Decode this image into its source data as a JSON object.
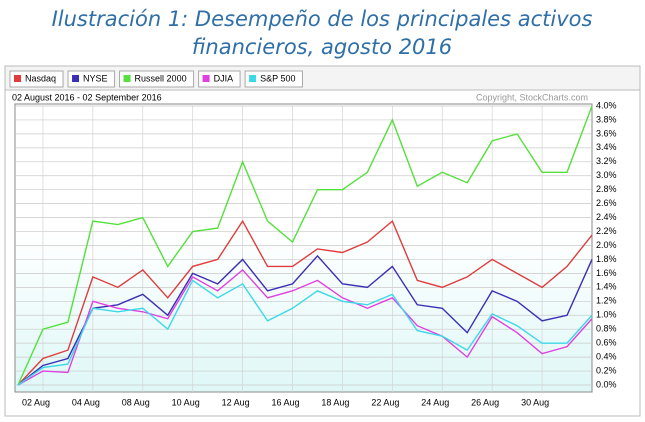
{
  "title": "Ilustración 1: Desempeño de los principales activos financieros, agosto 2016",
  "title_lines": [
    "Ilustración 1: Desempeño de los principales activos",
    "financieros, agosto 2016"
  ],
  "chart_data": {
    "type": "line",
    "subtitle": "02 August 2016 - 02 September 2016",
    "copyright": "Copyright, StockCharts.com",
    "categories": [
      null,
      "02 Aug",
      null,
      "04 Aug",
      null,
      "08 Aug",
      null,
      "10 Aug",
      null,
      "12 Aug",
      null,
      "16 Aug",
      null,
      "18 Aug",
      null,
      "22 Aug",
      null,
      "24 Aug",
      null,
      "26 Aug",
      null,
      "30 Aug",
      null,
      null
    ],
    "series": [
      {
        "name": "Nasdaq",
        "color": "#e03c3c",
        "values": [
          0,
          0.38,
          0.5,
          1.55,
          1.4,
          1.65,
          1.25,
          1.7,
          1.8,
          2.35,
          1.7,
          1.7,
          1.95,
          1.9,
          2.05,
          2.35,
          1.5,
          1.4,
          1.55,
          1.8,
          1.6,
          1.4,
          1.7,
          2.15
        ]
      },
      {
        "name": "NYSE",
        "color": "#3a2fb5",
        "values": [
          0,
          0.28,
          0.38,
          1.1,
          1.15,
          1.3,
          1.0,
          1.6,
          1.45,
          1.8,
          1.35,
          1.45,
          1.85,
          1.45,
          1.4,
          1.7,
          1.15,
          1.1,
          0.75,
          1.35,
          1.2,
          0.92,
          1.0,
          1.8
        ]
      },
      {
        "name": "Russell 2000",
        "color": "#55e03c",
        "values": [
          0,
          0.8,
          0.9,
          2.35,
          2.3,
          2.4,
          1.7,
          2.2,
          2.25,
          3.2,
          2.35,
          2.05,
          2.8,
          2.8,
          3.05,
          3.8,
          2.85,
          3.05,
          2.9,
          3.5,
          3.6,
          3.05,
          3.05,
          4.0
        ]
      },
      {
        "name": "DJIA",
        "color": "#e040e0",
        "values": [
          0,
          0.2,
          0.18,
          1.2,
          1.1,
          1.05,
          0.95,
          1.55,
          1.35,
          1.65,
          1.25,
          1.35,
          1.5,
          1.25,
          1.1,
          1.25,
          0.85,
          0.7,
          0.4,
          0.98,
          0.75,
          0.45,
          0.55,
          0.95
        ]
      },
      {
        "name": "S&P 500",
        "color": "#3cd8e8",
        "values": [
          0,
          0.25,
          0.3,
          1.1,
          1.05,
          1.1,
          0.8,
          1.5,
          1.25,
          1.45,
          0.92,
          1.1,
          1.35,
          1.2,
          1.15,
          1.3,
          0.78,
          0.7,
          0.5,
          1.02,
          0.85,
          0.6,
          0.6,
          1.0
        ]
      }
    ],
    "ylim": [
      0,
      4
    ],
    "yticks": [
      {
        "value": 0,
        "label": "0.0%"
      },
      {
        "value": 0.2,
        "label": "0.2%"
      },
      {
        "value": 0.4,
        "label": "0.4%"
      },
      {
        "value": 0.6,
        "label": "0.6%"
      },
      {
        "value": 0.8,
        "label": "0.8%"
      },
      {
        "value": 1,
        "label": "1.0%"
      },
      {
        "value": 1.2,
        "label": "1.2%"
      },
      {
        "value": 1.4,
        "label": "1.4%"
      },
      {
        "value": 1.6,
        "label": "1.6%"
      },
      {
        "value": 1.8,
        "label": "1.8%"
      },
      {
        "value": 2,
        "label": "2.0%"
      },
      {
        "value": 2.2,
        "label": "2.2%"
      },
      {
        "value": 2.4,
        "label": "2.4%"
      },
      {
        "value": 2.6,
        "label": "2.6%"
      },
      {
        "value": 2.8,
        "label": "2.8%"
      },
      {
        "value": 3,
        "label": "3.0%"
      },
      {
        "value": 3.2,
        "label": "3.2%"
      },
      {
        "value": 3.4,
        "label": "3.4%"
      },
      {
        "value": 3.6,
        "label": "3.6%"
      },
      {
        "value": 3.8,
        "label": "3.8%"
      },
      {
        "value": 4,
        "label": "4.0%"
      }
    ],
    "grid": true,
    "y_axis_side": "right",
    "legend": "top-left"
  }
}
